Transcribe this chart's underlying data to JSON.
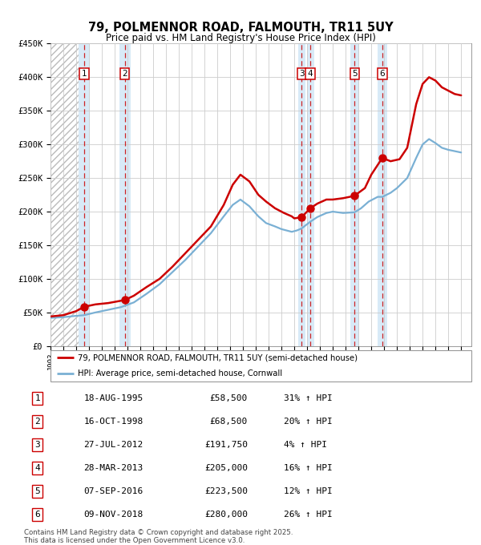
{
  "title": "79, POLMENNOR ROAD, FALMOUTH, TR11 5UY",
  "subtitle": "Price paid vs. HM Land Registry's House Price Index (HPI)",
  "ylim": [
    0,
    450000
  ],
  "yticks": [
    0,
    50000,
    100000,
    150000,
    200000,
    250000,
    300000,
    350000,
    400000,
    450000
  ],
  "ytick_labels": [
    "£0",
    "£50K",
    "£100K",
    "£150K",
    "£200K",
    "£250K",
    "£300K",
    "£350K",
    "£400K",
    "£450K"
  ],
  "xlim_start": 1993.0,
  "xlim_end": 2025.8,
  "hatch_end": 1995.45,
  "sale_dates": [
    1995.625,
    1998.792,
    2012.569,
    2013.244,
    2016.689,
    2018.861
  ],
  "sale_prices": [
    58500,
    68500,
    191750,
    205000,
    223500,
    280000
  ],
  "sale_labels": [
    "1",
    "2",
    "3",
    "4",
    "5",
    "6"
  ],
  "legend_line1": "79, POLMENNOR ROAD, FALMOUTH, TR11 5UY (semi-detached house)",
  "legend_line2": "HPI: Average price, semi-detached house, Cornwall",
  "table_entries": [
    {
      "num": "1",
      "date": "18-AUG-1995",
      "price": "£58,500",
      "hpi": "31% ↑ HPI"
    },
    {
      "num": "2",
      "date": "16-OCT-1998",
      "price": "£68,500",
      "hpi": "20% ↑ HPI"
    },
    {
      "num": "3",
      "date": "27-JUL-2012",
      "price": "£191,750",
      "hpi": "4% ↑ HPI"
    },
    {
      "num": "4",
      "date": "28-MAR-2013",
      "price": "£205,000",
      "hpi": "16% ↑ HPI"
    },
    {
      "num": "5",
      "date": "07-SEP-2016",
      "price": "£223,500",
      "hpi": "12% ↑ HPI"
    },
    {
      "num": "6",
      "date": "09-NOV-2018",
      "price": "£280,000",
      "hpi": "26% ↑ HPI"
    }
  ],
  "footer": "Contains HM Land Registry data © Crown copyright and database right 2025.\nThis data is licensed under the Open Government Licence v3.0.",
  "red_x": [
    1993.0,
    1994.0,
    1995.0,
    1995.625,
    1996.5,
    1997.5,
    1998.792,
    1999.5,
    2000.5,
    2001.5,
    2002.5,
    2003.5,
    2004.5,
    2005.5,
    2006.5,
    2007.2,
    2007.8,
    2008.5,
    2009.2,
    2009.8,
    2010.5,
    2011.2,
    2011.8,
    2012.0,
    2012.569,
    2013.244,
    2013.8,
    2014.5,
    2015.0,
    2015.8,
    2016.689,
    2017.0,
    2017.5,
    2018.0,
    2018.861,
    2019.5,
    2020.2,
    2020.8,
    2021.5,
    2022.0,
    2022.5,
    2023.0,
    2023.5,
    2024.0,
    2024.5,
    2025.0
  ],
  "red_y": [
    44000,
    46000,
    52000,
    58500,
    62000,
    64000,
    68500,
    75000,
    88000,
    100000,
    118000,
    138000,
    158000,
    178000,
    210000,
    240000,
    255000,
    245000,
    225000,
    215000,
    205000,
    198000,
    193000,
    190000,
    191750,
    205000,
    212000,
    218000,
    218000,
    220000,
    223500,
    228000,
    235000,
    255000,
    280000,
    275000,
    278000,
    295000,
    360000,
    390000,
    400000,
    395000,
    385000,
    380000,
    375000,
    373000
  ],
  "blue_x": [
    1993.0,
    1994.0,
    1995.0,
    1995.625,
    1996.5,
    1997.5,
    1998.5,
    1999.5,
    2000.5,
    2001.5,
    2002.5,
    2003.5,
    2004.5,
    2005.5,
    2006.5,
    2007.2,
    2007.8,
    2008.5,
    2009.2,
    2009.8,
    2010.5,
    2011.0,
    2011.8,
    2012.2,
    2012.569,
    2013.244,
    2013.8,
    2014.5,
    2015.0,
    2015.8,
    2016.689,
    2017.2,
    2017.8,
    2018.5,
    2018.861,
    2019.5,
    2020.0,
    2020.8,
    2021.5,
    2022.0,
    2022.5,
    2023.0,
    2023.5,
    2024.0,
    2025.0
  ],
  "blue_y": [
    42000,
    43000,
    45000,
    46000,
    50000,
    54000,
    58000,
    65000,
    78000,
    92000,
    110000,
    128000,
    148000,
    168000,
    193000,
    210000,
    218000,
    208000,
    193000,
    183000,
    178000,
    174000,
    170000,
    172000,
    175000,
    185000,
    192000,
    198000,
    200000,
    198000,
    199000,
    205000,
    215000,
    222000,
    222000,
    228000,
    235000,
    250000,
    280000,
    300000,
    308000,
    302000,
    295000,
    292000,
    288000
  ],
  "line_color_red": "#cc0000",
  "line_color_blue": "#7ab0d4",
  "grid_color": "#cccccc",
  "sale_band_color": "#d8eaf7",
  "vline_color": "#cc0000",
  "hatch_color": "#d8d8d8"
}
